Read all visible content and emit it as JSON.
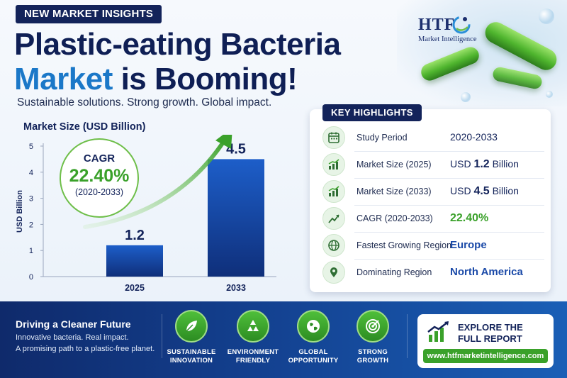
{
  "badge": "NEW MARKET INSIGHTS",
  "headline": {
    "line1": "Plastic-eating Bacteria",
    "line2_blue": "Market",
    "line2_rest": " is Booming!"
  },
  "subhead": "Sustainable solutions. Strong growth. Global impact.",
  "logo": {
    "text": "HTF",
    "subtitle": "Market Intelligence"
  },
  "chart_data": {
    "type": "bar",
    "title": "Market Size (USD Billion)",
    "categories": [
      "2025",
      "2033"
    ],
    "values": [
      1.2,
      4.5
    ],
    "data_labels": [
      "1.2",
      "4.5"
    ],
    "ylabel": "USD Billion",
    "xlabel": "",
    "ylim": [
      0,
      5
    ],
    "yticks": [
      "0",
      "1",
      "2",
      "3",
      "4",
      "5"
    ],
    "grid": false,
    "bar_color": "#1a4fb0"
  },
  "cagr": {
    "label": "CAGR",
    "value": "22.40%",
    "period": "(2020-2033)"
  },
  "highlights": {
    "title": "KEY HIGHLIGHTS",
    "rows": [
      {
        "icon": "calendar-icon",
        "label": "Study Period",
        "value": "2020-2033"
      },
      {
        "icon": "bar-chart-icon",
        "label": "Market Size (2025)",
        "value_prefix": "USD ",
        "value_bold": "1.2",
        "value_suffix": " Billion"
      },
      {
        "icon": "bar-chart-icon",
        "label": "Market Size (2033)",
        "value_prefix": "USD ",
        "value_bold": "4.5",
        "value_suffix": " Billion"
      },
      {
        "icon": "trend-up-icon",
        "label": "CAGR (2020-2033)",
        "value": "22.40%"
      },
      {
        "icon": "globe-icon",
        "label": "Fastest Growing Region",
        "value": "Europe"
      },
      {
        "icon": "location-pin-icon",
        "label": "Dominating Region",
        "value": "North America"
      }
    ]
  },
  "bottom": {
    "title": "Driving a Cleaner Future",
    "line1": "Innovative bacteria. Real impact.",
    "line2": "A promising path to a plastic-free planet.",
    "features": [
      {
        "icon": "leaf-icon",
        "line1": "SUSTAINABLE",
        "line2": "INNOVATION"
      },
      {
        "icon": "recycle-icon",
        "line1": "ENVIRONMENT",
        "line2": "FRIENDLY"
      },
      {
        "icon": "globe-icon",
        "line1": "GLOBAL",
        "line2": "OPPORTUNITY"
      },
      {
        "icon": "target-icon",
        "line1": "STRONG",
        "line2": "GROWTH"
      }
    ]
  },
  "explore": {
    "line1": "EXPLORE THE",
    "line2": "FULL REPORT",
    "url": "www.htfmarketintelligence.com"
  },
  "colors": {
    "navy": "#13235a",
    "blue": "#1b78c8",
    "green": "#3aa12a"
  }
}
